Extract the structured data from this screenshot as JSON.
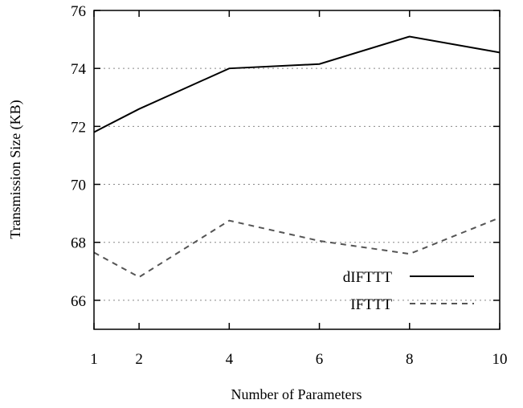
{
  "chart_data": {
    "type": "line",
    "title": "",
    "xlabel": "Number of Parameters",
    "ylabel": "Transmission Size (KB)",
    "x": [
      1,
      2,
      4,
      6,
      8,
      10
    ],
    "xticks": [
      "1",
      "2",
      "4",
      "6",
      "8",
      "10"
    ],
    "xlim": [
      1,
      10
    ],
    "ylim": [
      65,
      76
    ],
    "yticks": [
      "66",
      "68",
      "70",
      "72",
      "74",
      "76"
    ],
    "grid": "horizontal dotted",
    "legend_position": "bottom-right",
    "series": [
      {
        "name": "dIFTTT",
        "values": [
          71.8,
          72.6,
          74.0,
          74.15,
          75.1,
          74.55
        ],
        "color": "#000000",
        "style": "solid"
      },
      {
        "name": "IFTTT",
        "values": [
          67.65,
          66.8,
          68.75,
          68.05,
          67.6,
          68.85
        ],
        "color": "#555555",
        "style": "dashed"
      }
    ]
  }
}
